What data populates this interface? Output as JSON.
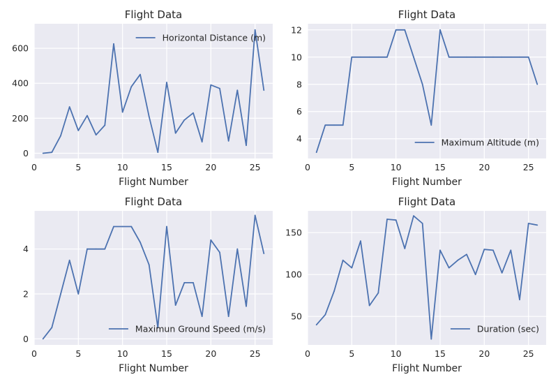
{
  "charts": [
    {
      "type": "line",
      "title": "Flight Data",
      "xlabel": "Flight Number",
      "ylabel": "",
      "legend": "top-right",
      "xlim": [
        0,
        27
      ],
      "ylim": [
        -30,
        740
      ],
      "xticks": [
        0,
        5,
        10,
        15,
        20,
        25
      ],
      "yticks": [
        0,
        200,
        400,
        600
      ],
      "series": [
        {
          "name": "Horizontal Distance (m)",
          "color": "#4c72b0",
          "x": [
            1,
            2,
            3,
            4,
            5,
            6,
            7,
            8,
            9,
            10,
            11,
            12,
            13,
            14,
            15,
            16,
            17,
            18,
            19,
            20,
            21,
            22,
            23,
            24,
            25,
            26
          ],
          "y": [
            0,
            5,
            100,
            265,
            130,
            215,
            105,
            160,
            625,
            235,
            380,
            450,
            210,
            5,
            405,
            115,
            190,
            230,
            65,
            390,
            370,
            70,
            360,
            45,
            705,
            360
          ]
        }
      ]
    },
    {
      "type": "line",
      "title": "Flight Data",
      "xlabel": "Flight Number",
      "ylabel": "",
      "legend": "bottom-right",
      "xlim": [
        0,
        27
      ],
      "ylim": [
        2.55,
        12.45
      ],
      "xticks": [
        0,
        5,
        10,
        15,
        20,
        25
      ],
      "yticks": [
        4,
        6,
        8,
        10,
        12
      ],
      "series": [
        {
          "name": "Maximum Altitude (m)",
          "color": "#4c72b0",
          "x": [
            1,
            2,
            3,
            4,
            5,
            6,
            7,
            8,
            9,
            10,
            11,
            12,
            13,
            14,
            15,
            16,
            17,
            18,
            19,
            20,
            21,
            22,
            23,
            24,
            25,
            26
          ],
          "y": [
            3,
            5,
            5,
            5,
            10,
            10,
            10,
            10,
            10,
            12,
            12,
            10,
            8,
            5,
            12,
            10,
            10,
            10,
            10,
            10,
            10,
            10,
            10,
            10,
            10,
            8
          ]
        }
      ]
    },
    {
      "type": "line",
      "title": "Flight Data",
      "xlabel": "Flight Number",
      "ylabel": "",
      "legend": "bottom-right",
      "xlim": [
        0,
        27
      ],
      "ylim": [
        -0.27,
        5.7
      ],
      "xticks": [
        0,
        5,
        10,
        15,
        20,
        25
      ],
      "yticks": [
        0,
        2,
        4
      ],
      "series": [
        {
          "name": "Maximun Ground Speed (m/s)",
          "color": "#4c72b0",
          "x": [
            1,
            2,
            3,
            4,
            5,
            6,
            7,
            8,
            9,
            10,
            11,
            12,
            13,
            14,
            15,
            16,
            17,
            18,
            19,
            20,
            21,
            22,
            23,
            24,
            25,
            26
          ],
          "y": [
            0,
            0.5,
            2,
            3.5,
            2,
            4,
            4,
            4,
            5,
            5,
            5,
            4.3,
            3.3,
            0.5,
            5,
            1.5,
            2.5,
            2.5,
            1,
            4.4,
            3.85,
            1,
            4,
            1.45,
            5.5,
            3.8
          ]
        }
      ]
    },
    {
      "type": "line",
      "title": "Flight Data",
      "xlabel": "Flight Number",
      "ylabel": "",
      "legend": "bottom-right",
      "xlim": [
        0,
        27
      ],
      "ylim": [
        16,
        176
      ],
      "xticks": [
        0,
        5,
        10,
        15,
        20,
        25
      ],
      "yticks": [
        50,
        100,
        150
      ],
      "series": [
        {
          "name": "Duration (sec)",
          "color": "#4c72b0",
          "x": [
            1,
            2,
            3,
            4,
            5,
            6,
            7,
            8,
            9,
            10,
            11,
            12,
            13,
            14,
            15,
            16,
            17,
            18,
            19,
            20,
            21,
            22,
            23,
            24,
            25,
            26
          ],
          "y": [
            40,
            52,
            80,
            117,
            108,
            140,
            63,
            78,
            166,
            165,
            131,
            170,
            161,
            23,
            129,
            108,
            117,
            124,
            100,
            130,
            129,
            102,
            129,
            70,
            161,
            159
          ]
        }
      ]
    }
  ],
  "style": {
    "plot_bg": "#eaeaf2",
    "grid_color": "#ffffff",
    "text_color": "#262626"
  }
}
